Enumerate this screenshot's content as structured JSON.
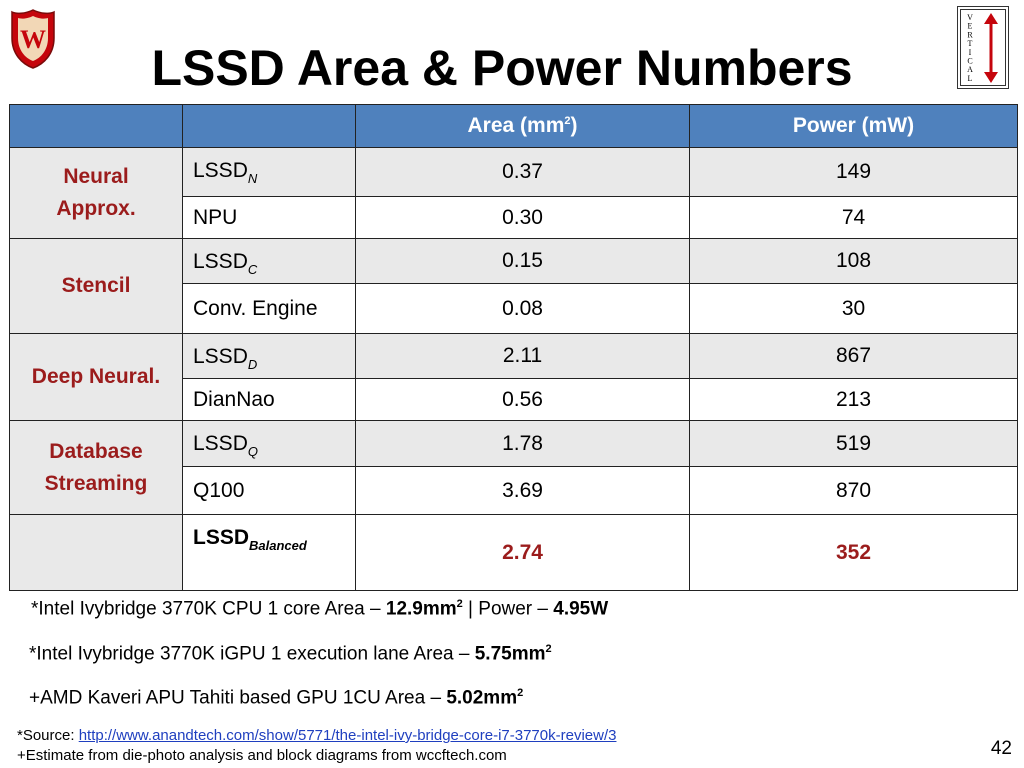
{
  "title": "LSSD Area & Power Numbers",
  "vertical_badge_letters": "VERTICAL",
  "colors": {
    "header_bg": "#4f81bd",
    "band_bg": "#e9e9e9",
    "accent": "#9b1c1c",
    "link": "#1f3fbf"
  },
  "table": {
    "headers": {
      "area_label": "Area  (mm",
      "area_sup": "2",
      "area_close": ")",
      "power": "Power (mW)"
    },
    "groups": [
      {
        "label_lines": [
          "Neural",
          "Approx."
        ],
        "rows": [
          {
            "base": "LSSD",
            "sub": "N",
            "area": "0.37",
            "power": "149"
          },
          {
            "base": "NPU",
            "sub": "",
            "area": "0.30",
            "power": "74"
          }
        ]
      },
      {
        "label_lines": [
          "Stencil"
        ],
        "rows": [
          {
            "base": "LSSD",
            "sub": "C",
            "area": "0.15",
            "power": "108"
          },
          {
            "base": "Conv. Engine",
            "sub": "",
            "area": "0.08",
            "power": "30"
          }
        ]
      },
      {
        "label_lines": [
          "Deep Neural."
        ],
        "rows": [
          {
            "base": "LSSD",
            "sub": "D",
            "area": "2.11",
            "power": "867"
          },
          {
            "base": "DianNao",
            "sub": "",
            "area": "0.56",
            "power": "213"
          }
        ]
      },
      {
        "label_lines": [
          "Database",
          "Streaming"
        ],
        "rows": [
          {
            "base": "LSSD",
            "sub": "Q",
            "area": "1.78",
            "power": "519"
          },
          {
            "base": "Q100",
            "sub": "",
            "area": "3.69",
            "power": "870"
          }
        ]
      }
    ],
    "balanced": {
      "base": "LSSD",
      "sub": "Balanced",
      "area": "2.74",
      "power": "352"
    }
  },
  "notes": {
    "cpu": {
      "prefix": "*Intel Ivybridge 3770K  CPU 1 core Area –  ",
      "area_value": "12.9mm",
      "area_sup": "2",
      "separator": "  |  Power – ",
      "power_value": "4.95W"
    },
    "igpu": {
      "prefix": "*Intel Ivybridge 3770K  iGPU 1 execution lane Area  –  ",
      "value": "5.75mm",
      "sup": "2"
    },
    "amd": {
      "prefix": "+AMD Kaveri APU Tahiti based GPU 1CU Area – ",
      "value": "5.02mm",
      "sup": "2"
    }
  },
  "sources": {
    "prefix": "*Source: ",
    "link_text": "http://www.anandtech.com/show/5771/the-intel-ivy-bridge-core-i7-3770k-review/3",
    "estimate": "+Estimate from die-photo analysis and block diagrams from wccftech.com"
  },
  "page_number": "42"
}
